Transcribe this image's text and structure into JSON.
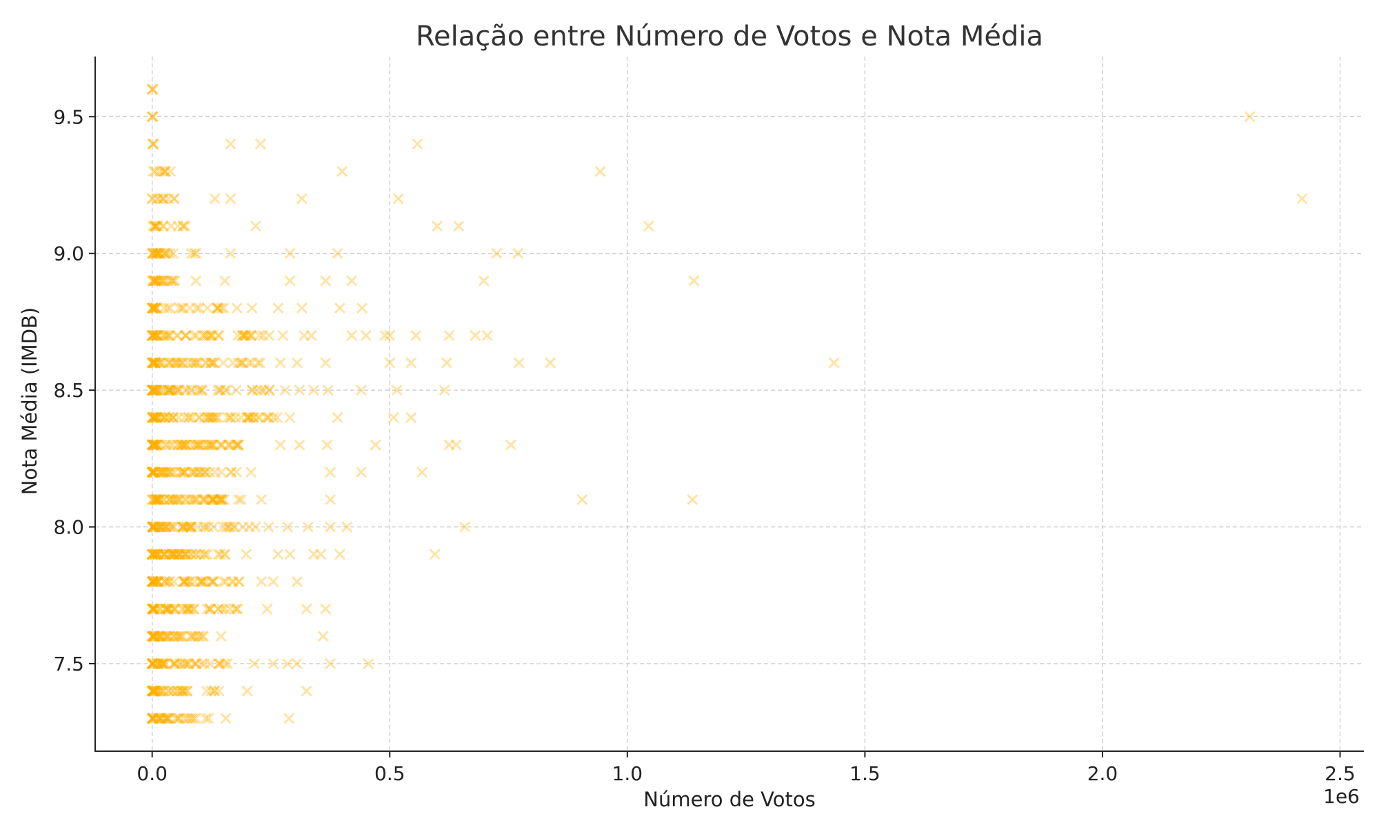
{
  "chart_data": {
    "type": "scatter",
    "title": "Relação entre Número de Votos e Nota Média",
    "xlabel": "Número de Votos",
    "ylabel": "Nota Média (IMDB)",
    "x_offset_label": "1e6",
    "x_scale": 1000000,
    "xlim": [
      -120000,
      2550000
    ],
    "ylim": [
      7.18,
      9.72
    ],
    "x_ticks": [
      0,
      500000,
      1000000,
      1500000,
      2000000,
      2500000
    ],
    "x_tick_labels": [
      "0.0",
      "0.5",
      "1.0",
      "1.5",
      "2.0",
      "2.5"
    ],
    "y_ticks": [
      7.5,
      8.0,
      8.5,
      9.0,
      9.5
    ],
    "y_tick_labels": [
      "7.5",
      "8.0",
      "8.5",
      "9.0",
      "9.5"
    ],
    "grid": true,
    "marker": "x",
    "color": "#FFB000",
    "opacity": 0.35,
    "dense_clusters": [
      {
        "y": 9.6,
        "xmax": 3000,
        "count": 3
      },
      {
        "y": 9.5,
        "xmax": 3000,
        "count": 3
      },
      {
        "y": 9.4,
        "xmax": 5000,
        "count": 3
      },
      {
        "y": 9.3,
        "xmax": 60000,
        "count": 8
      },
      {
        "y": 9.2,
        "xmax": 55000,
        "count": 10
      },
      {
        "y": 9.1,
        "xmax": 80000,
        "count": 14
      },
      {
        "y": 9.0,
        "xmax": 110000,
        "count": 22
      },
      {
        "y": 8.9,
        "xmax": 55000,
        "count": 20
      },
      {
        "y": 8.8,
        "xmax": 180000,
        "count": 30
      },
      {
        "y": 8.7,
        "xmax": 250000,
        "count": 50
      },
      {
        "y": 8.6,
        "xmax": 230000,
        "count": 50
      },
      {
        "y": 8.5,
        "xmax": 250000,
        "count": 55
      },
      {
        "y": 8.4,
        "xmax": 270000,
        "count": 60
      },
      {
        "y": 8.3,
        "xmax": 200000,
        "count": 60
      },
      {
        "y": 8.2,
        "xmax": 180000,
        "count": 55
      },
      {
        "y": 8.1,
        "xmax": 200000,
        "count": 55
      },
      {
        "y": 8.0,
        "xmax": 220000,
        "count": 55
      },
      {
        "y": 7.9,
        "xmax": 160000,
        "count": 55
      },
      {
        "y": 7.8,
        "xmax": 190000,
        "count": 50
      },
      {
        "y": 7.7,
        "xmax": 180000,
        "count": 45
      },
      {
        "y": 7.6,
        "xmax": 115000,
        "count": 40
      },
      {
        "y": 7.5,
        "xmax": 170000,
        "count": 45
      },
      {
        "y": 7.4,
        "xmax": 150000,
        "count": 40
      },
      {
        "y": 7.3,
        "xmax": 130000,
        "count": 35
      }
    ],
    "points": [
      [
        165000,
        9.4
      ],
      [
        228000,
        9.4
      ],
      [
        558000,
        9.4
      ],
      [
        400000,
        9.3
      ],
      [
        943000,
        9.3
      ],
      [
        2310000,
        9.5
      ],
      [
        132000,
        9.2
      ],
      [
        165000,
        9.2
      ],
      [
        315000,
        9.2
      ],
      [
        518000,
        9.2
      ],
      [
        2420000,
        9.2
      ],
      [
        218000,
        9.1
      ],
      [
        600000,
        9.1
      ],
      [
        645000,
        9.1
      ],
      [
        1045000,
        9.1
      ],
      [
        165000,
        9.0
      ],
      [
        290000,
        9.0
      ],
      [
        390000,
        9.0
      ],
      [
        725000,
        9.0
      ],
      [
        770000,
        9.0
      ],
      [
        92000,
        8.9
      ],
      [
        153000,
        8.9
      ],
      [
        290000,
        8.9
      ],
      [
        365000,
        8.9
      ],
      [
        420000,
        8.9
      ],
      [
        698000,
        8.9
      ],
      [
        1140000,
        8.9
      ],
      [
        210000,
        8.8
      ],
      [
        265000,
        8.8
      ],
      [
        315000,
        8.8
      ],
      [
        395000,
        8.8
      ],
      [
        442000,
        8.8
      ],
      [
        275000,
        8.7
      ],
      [
        320000,
        8.7
      ],
      [
        335000,
        8.7
      ],
      [
        420000,
        8.7
      ],
      [
        450000,
        8.7
      ],
      [
        490000,
        8.7
      ],
      [
        500000,
        8.7
      ],
      [
        555000,
        8.7
      ],
      [
        625000,
        8.7
      ],
      [
        680000,
        8.7
      ],
      [
        705000,
        8.7
      ],
      [
        270000,
        8.6
      ],
      [
        305000,
        8.6
      ],
      [
        365000,
        8.6
      ],
      [
        500000,
        8.6
      ],
      [
        545000,
        8.6
      ],
      [
        620000,
        8.6
      ],
      [
        772000,
        8.6
      ],
      [
        838000,
        8.6
      ],
      [
        1435000,
        8.6
      ],
      [
        280000,
        8.5
      ],
      [
        310000,
        8.5
      ],
      [
        340000,
        8.5
      ],
      [
        370000,
        8.5
      ],
      [
        440000,
        8.5
      ],
      [
        515000,
        8.5
      ],
      [
        615000,
        8.5
      ],
      [
        290000,
        8.4
      ],
      [
        390000,
        8.4
      ],
      [
        508000,
        8.4
      ],
      [
        545000,
        8.4
      ],
      [
        270000,
        8.3
      ],
      [
        310000,
        8.3
      ],
      [
        368000,
        8.3
      ],
      [
        470000,
        8.3
      ],
      [
        625000,
        8.3
      ],
      [
        640000,
        8.3
      ],
      [
        755000,
        8.3
      ],
      [
        208000,
        8.2
      ],
      [
        375000,
        8.2
      ],
      [
        440000,
        8.2
      ],
      [
        568000,
        8.2
      ],
      [
        182000,
        8.1
      ],
      [
        230000,
        8.1
      ],
      [
        375000,
        8.1
      ],
      [
        905000,
        8.1
      ],
      [
        1137000,
        8.1
      ],
      [
        245000,
        8.0
      ],
      [
        285000,
        8.0
      ],
      [
        328000,
        8.0
      ],
      [
        375000,
        8.0
      ],
      [
        410000,
        8.0
      ],
      [
        658000,
        8.0
      ],
      [
        198000,
        7.9
      ],
      [
        265000,
        7.9
      ],
      [
        290000,
        7.9
      ],
      [
        340000,
        7.9
      ],
      [
        355000,
        7.9
      ],
      [
        395000,
        7.9
      ],
      [
        595000,
        7.9
      ],
      [
        230000,
        7.8
      ],
      [
        255000,
        7.8
      ],
      [
        305000,
        7.8
      ],
      [
        163000,
        7.7
      ],
      [
        242000,
        7.7
      ],
      [
        325000,
        7.7
      ],
      [
        365000,
        7.7
      ],
      [
        145000,
        7.6
      ],
      [
        360000,
        7.6
      ],
      [
        215000,
        7.5
      ],
      [
        255000,
        7.5
      ],
      [
        285000,
        7.5
      ],
      [
        305000,
        7.5
      ],
      [
        375000,
        7.5
      ],
      [
        455000,
        7.5
      ],
      [
        200000,
        7.4
      ],
      [
        325000,
        7.4
      ],
      [
        155000,
        7.3
      ],
      [
        288000,
        7.3
      ]
    ]
  }
}
